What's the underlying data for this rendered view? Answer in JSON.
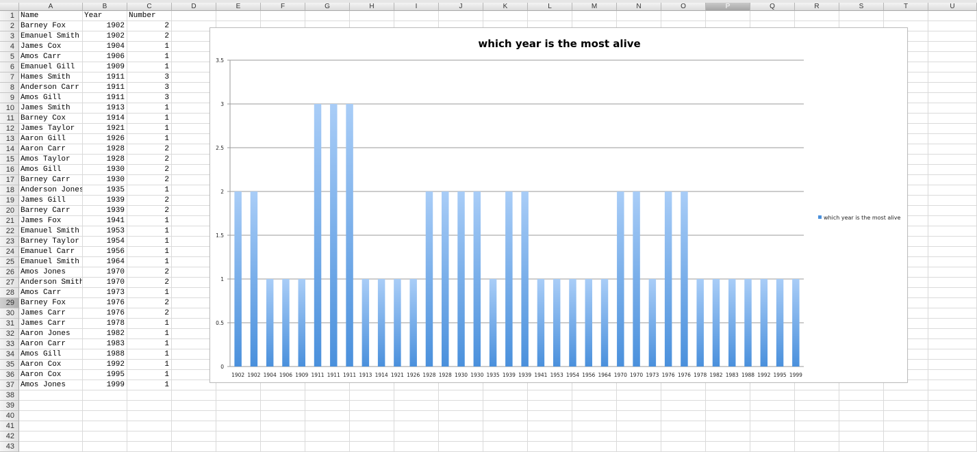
{
  "columns": [
    "A",
    "B",
    "C",
    "D",
    "E",
    "F",
    "G",
    "H",
    "I",
    "J",
    "K",
    "L",
    "M",
    "N",
    "O",
    "P",
    "Q",
    "R",
    "S",
    "T",
    "U"
  ],
  "selected_column": "P",
  "selected_row": 29,
  "row_count": 43,
  "header_row": [
    "Name",
    "Year",
    "Number"
  ],
  "rows": [
    [
      "Barney Fox",
      "1902",
      "2"
    ],
    [
      "Emanuel Smith",
      "1902",
      "2"
    ],
    [
      "James Cox",
      "1904",
      "1"
    ],
    [
      "Amos Carr",
      "1906",
      "1"
    ],
    [
      "Emanuel Gill",
      "1909",
      "1"
    ],
    [
      "Hames Smith",
      "1911",
      "3"
    ],
    [
      "Anderson Carr",
      "1911",
      "3"
    ],
    [
      "Amos Gill",
      "1911",
      "3"
    ],
    [
      "James Smith",
      "1913",
      "1"
    ],
    [
      "Barney Cox",
      "1914",
      "1"
    ],
    [
      "James Taylor",
      "1921",
      "1"
    ],
    [
      "Aaron Gill",
      "1926",
      "1"
    ],
    [
      "Aaron Carr",
      "1928",
      "2"
    ],
    [
      "Amos Taylor",
      "1928",
      "2"
    ],
    [
      "Amos Gill",
      "1930",
      "2"
    ],
    [
      "Barney Carr",
      "1930",
      "2"
    ],
    [
      "Anderson Jones",
      "1935",
      "1"
    ],
    [
      "James Gill",
      "1939",
      "2"
    ],
    [
      "Barney Carr",
      "1939",
      "2"
    ],
    [
      "James Fox",
      "1941",
      "1"
    ],
    [
      "Emanuel Smith",
      "1953",
      "1"
    ],
    [
      "Barney Taylor",
      "1954",
      "1"
    ],
    [
      "Emanuel Carr",
      "1956",
      "1"
    ],
    [
      "Emanuel Smith",
      "1964",
      "1"
    ],
    [
      "Amos Jones",
      "1970",
      "2"
    ],
    [
      "Anderson Smith",
      "1970",
      "2"
    ],
    [
      "Amos Carr",
      "1973",
      "1"
    ],
    [
      "Barney Fox",
      "1976",
      "2"
    ],
    [
      "James Carr",
      "1976",
      "2"
    ],
    [
      "James Carr",
      "1978",
      "1"
    ],
    [
      "Aaron Jones",
      "1982",
      "1"
    ],
    [
      "Aaron Carr",
      "1983",
      "1"
    ],
    [
      "Amos Gill",
      "1988",
      "1"
    ],
    [
      "Aaron Cox",
      "1992",
      "1"
    ],
    [
      "Aaron Cox",
      "1995",
      "1"
    ],
    [
      "Amos Jones",
      "1999",
      "1"
    ]
  ],
  "chart_data": {
    "type": "bar",
    "title": "which year is the most alive",
    "categories": [
      "1902",
      "1902",
      "1904",
      "1906",
      "1909",
      "1911",
      "1911",
      "1911",
      "1913",
      "1914",
      "1921",
      "1926",
      "1928",
      "1928",
      "1930",
      "1930",
      "1935",
      "1939",
      "1939",
      "1941",
      "1953",
      "1954",
      "1956",
      "1964",
      "1970",
      "1970",
      "1973",
      "1976",
      "1976",
      "1978",
      "1982",
      "1983",
      "1988",
      "1992",
      "1995",
      "1999"
    ],
    "series": [
      {
        "name": "which year is the most alive",
        "values": [
          2,
          2,
          1,
          1,
          1,
          3,
          3,
          3,
          1,
          1,
          1,
          1,
          2,
          2,
          2,
          2,
          1,
          2,
          2,
          1,
          1,
          1,
          1,
          1,
          2,
          2,
          1,
          2,
          2,
          1,
          1,
          1,
          1,
          1,
          1,
          1
        ]
      }
    ],
    "ylim": [
      0,
      3.5
    ],
    "yticks": [
      "0",
      "0.5",
      "1",
      "1.5",
      "2",
      "2.5",
      "3",
      "3.5"
    ],
    "grid": true,
    "legend_position": "right",
    "bar_color_top": "#a9cdf7",
    "bar_color_bottom": "#4a90dc"
  }
}
